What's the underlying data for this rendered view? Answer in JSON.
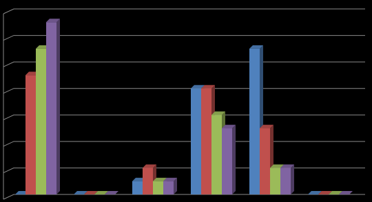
{
  "chart_data": {
    "type": "bar3d",
    "categories": [
      null,
      null,
      null,
      null,
      null,
      null
    ],
    "series": [
      {
        "color": "#4f81bd",
        "values": [
          0,
          0,
          0.5,
          4,
          5.5,
          0
        ]
      },
      {
        "color": "#c0504d",
        "values": [
          4.5,
          0,
          1,
          4,
          2.5,
          0
        ]
      },
      {
        "color": "#9bbb59",
        "values": [
          5.5,
          0,
          0.5,
          3,
          1,
          0
        ]
      },
      {
        "color": "#8064a2",
        "values": [
          6.5,
          0,
          0.5,
          2.5,
          1,
          0
        ]
      }
    ],
    "ylim": [
      0,
      7
    ],
    "yticks": [
      0,
      1,
      2,
      3,
      4,
      5,
      6,
      7
    ],
    "grid": true
  }
}
